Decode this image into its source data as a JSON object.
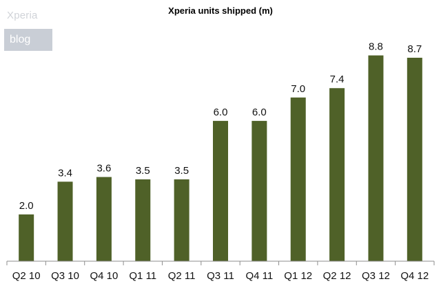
{
  "watermark": {
    "title": "Xperia",
    "badge": "blog"
  },
  "chart_data": {
    "type": "bar",
    "title": "Xperia units shipped (m)",
    "xlabel": "",
    "ylabel": "",
    "categories": [
      "Q2 10",
      "Q3 10",
      "Q4 10",
      "Q1 11",
      "Q2 11",
      "Q3 11",
      "Q4 11",
      "Q1 12",
      "Q2 12",
      "Q3 12",
      "Q4 12"
    ],
    "values": [
      2.0,
      3.4,
      3.6,
      3.5,
      3.5,
      6.0,
      6.0,
      7.0,
      7.4,
      8.8,
      8.7
    ],
    "value_labels": [
      "2.0",
      "3.4",
      "3.6",
      "3.5",
      "3.5",
      "6.0",
      "6.0",
      "7.0",
      "7.4",
      "8.8",
      "8.7"
    ],
    "ylim": [
      0,
      9.2
    ],
    "grid": false,
    "legend": "none",
    "colors": {
      "bar": "#4f6128",
      "axis": "#8c8c8c"
    }
  }
}
